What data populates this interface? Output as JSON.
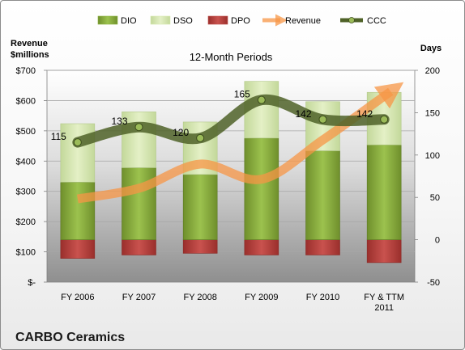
{
  "chart_data": {
    "type": "bar",
    "title": "12-Month Periods",
    "company": "CARBO Ceramics",
    "categories": [
      [
        "FY 2006"
      ],
      [
        "FY 2007"
      ],
      [
        "FY 2008"
      ],
      [
        "FY 2009"
      ],
      [
        "FY 2010"
      ],
      [
        "FY & TTM",
        "2011"
      ]
    ],
    "left_axis": {
      "label_lines": [
        "Revenue",
        "$millions"
      ],
      "ylim": [
        0,
        700
      ],
      "ticks": [
        "$-",
        "$100",
        "$200",
        "$300",
        "$400",
        "$500",
        "$600",
        "$700"
      ]
    },
    "right_axis": {
      "label": "Days",
      "ylim": [
        -50,
        200
      ],
      "ticks": [
        "-50",
        "0",
        "50",
        "100",
        "150",
        "200"
      ]
    },
    "legend": {
      "placement": "top",
      "items": [
        {
          "name": "DIO",
          "kind": "bar",
          "color": "#8db340"
        },
        {
          "name": "DSO",
          "kind": "bar",
          "color": "#d8e9b0"
        },
        {
          "name": "DPO",
          "kind": "bar",
          "color": "#c0504d"
        },
        {
          "name": "Revenue",
          "kind": "arrow",
          "color": "#f79646"
        },
        {
          "name": "CCC",
          "kind": "line",
          "color": "#4f6228"
        }
      ]
    },
    "series": [
      {
        "name": "DIO",
        "axis": "right",
        "values": [
          68,
          85,
          77,
          120,
          105,
          112
        ]
      },
      {
        "name": "DSO",
        "axis": "right",
        "values": [
          69,
          66,
          62,
          67,
          58,
          62
        ]
      },
      {
        "name": "DPO",
        "axis": "right",
        "values": [
          -22,
          -18,
          -16,
          -18,
          -18,
          -27
        ]
      },
      {
        "name": "Revenue",
        "axis": "left",
        "values": [
          275,
          310,
          390,
          340,
          470,
          630
        ]
      },
      {
        "name": "CCC",
        "axis": "right",
        "values": [
          115,
          133,
          120,
          165,
          142,
          142
        ],
        "labels": [
          "115",
          "133",
          "120",
          "165",
          "142",
          "142"
        ]
      }
    ],
    "grid": true
  }
}
